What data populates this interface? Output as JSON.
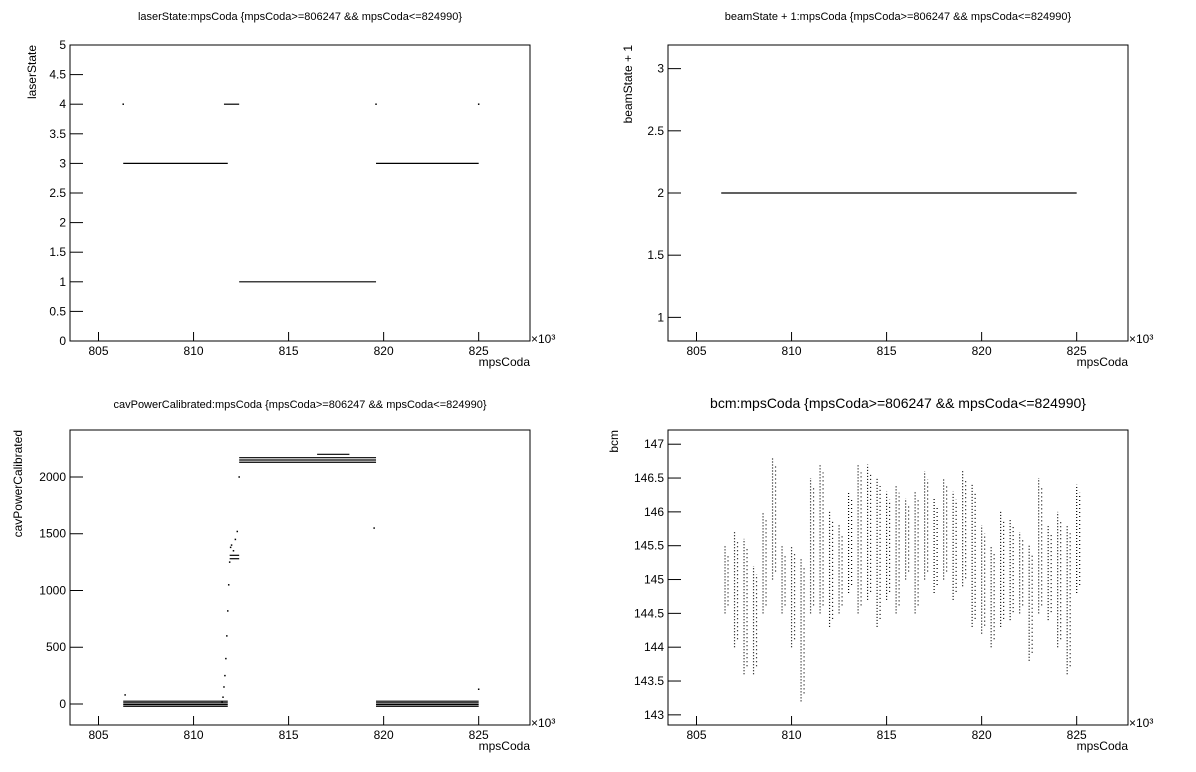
{
  "chart_data": [
    {
      "type": "scatter",
      "title": "laserState:mpsCoda {mpsCoda>=806247 && mpsCoda<=824990}",
      "x_label": "mpsCoda",
      "y_label": "laserState",
      "x_scale_label": "×10³",
      "xlim": [
        803.5,
        827.7
      ],
      "ylim": [
        0,
        5
      ],
      "xticks": [
        805,
        810,
        815,
        820,
        825
      ],
      "yticks": [
        0,
        0.5,
        1,
        1.5,
        2,
        2.5,
        3,
        3.5,
        4,
        4.5,
        5
      ],
      "segments": [
        {
          "x": [
            806.3,
            811.8
          ],
          "y": 3
        },
        {
          "x": [
            811.6,
            812.4
          ],
          "y": 4
        },
        {
          "x": [
            812.4,
            819.6
          ],
          "y": 1
        },
        {
          "x": [
            819.6,
            825
          ],
          "y": 3
        }
      ],
      "points": {
        "x": [
          806.3,
          819.6,
          825
        ],
        "y": [
          4,
          4,
          4
        ]
      }
    },
    {
      "type": "scatter",
      "title": "beamState + 1:mpsCoda {mpsCoda>=806247 && mpsCoda<=824990}",
      "x_label": "mpsCoda",
      "y_label": "beamState + 1",
      "x_scale_label": "×10³",
      "xlim": [
        803.5,
        827.7
      ],
      "ylim": [
        0.81,
        3.19
      ],
      "xticks": [
        805,
        810,
        815,
        820,
        825
      ],
      "yticks": [
        1,
        1.5,
        2,
        2.5,
        3
      ],
      "segments": [
        {
          "x": [
            806.3,
            825
          ],
          "y": 2
        }
      ]
    },
    {
      "type": "scatter",
      "title": "cavPowerCalibrated:mpsCoda {mpsCoda>=806247 && mpsCoda<=824990}",
      "x_label": "mpsCoda",
      "y_label": "cavPowerCalibrated",
      "x_scale_label": "×10³",
      "xlim": [
        803.5,
        827.7
      ],
      "ylim": [
        -185,
        2414
      ],
      "xticks": [
        805,
        810,
        815,
        820,
        825
      ],
      "yticks": [
        0,
        500,
        1000,
        1500,
        2000
      ],
      "segments": [
        {
          "x": [
            806.3,
            811.8
          ],
          "y": -20
        },
        {
          "x": [
            806.3,
            811.8
          ],
          "y": -5
        },
        {
          "x": [
            806.3,
            811.8
          ],
          "y": 10
        },
        {
          "x": [
            806.3,
            811.8
          ],
          "y": 25
        },
        {
          "x": [
            811.9,
            812.4
          ],
          "y": 1280
        },
        {
          "x": [
            811.9,
            812.4
          ],
          "y": 1310
        },
        {
          "x": [
            812.4,
            819.6
          ],
          "y": 2130
        },
        {
          "x": [
            812.4,
            819.6
          ],
          "y": 2150
        },
        {
          "x": [
            812.4,
            819.6
          ],
          "y": 2170
        },
        {
          "x": [
            816.5,
            818.2
          ],
          "y": 2200
        },
        {
          "x": [
            819.6,
            825
          ],
          "y": -20
        },
        {
          "x": [
            819.6,
            825
          ],
          "y": -5
        },
        {
          "x": [
            819.6,
            825
          ],
          "y": 10
        },
        {
          "x": [
            819.6,
            825
          ],
          "y": 25
        }
      ],
      "points": {
        "x": [
          806.4,
          811.5,
          811.55,
          811.6,
          811.65,
          811.7,
          811.75,
          811.8,
          811.85,
          811.9,
          811.95,
          812.0,
          812.1,
          812.2,
          812.3,
          812.4,
          819.5,
          825
        ],
        "y": [
          80,
          20,
          60,
          150,
          250,
          400,
          600,
          820,
          1050,
          1250,
          1380,
          1400,
          1350,
          1450,
          1520,
          2000,
          1550,
          130
        ]
      }
    },
    {
      "type": "scatter",
      "title": "bcm:mpsCoda {mpsCoda>=806247 && mpsCoda<=824990}",
      "x_label": "mpsCoda",
      "y_label": "bcm",
      "x_scale_label": "×10³",
      "xlim": [
        803.5,
        827.7
      ],
      "ylim": [
        142.85,
        147.21
      ],
      "xticks": [
        805,
        810,
        815,
        820,
        825
      ],
      "yticks": [
        143,
        143.5,
        144,
        144.5,
        145,
        145.5,
        146,
        146.5,
        147
      ],
      "columns": {
        "x": [
          806.5,
          807,
          807.5,
          808,
          808.5,
          809,
          809.5,
          810,
          810.5,
          811,
          811.5,
          812,
          812.5,
          813,
          813.5,
          814,
          814.5,
          815,
          815.5,
          816,
          816.5,
          817,
          817.5,
          818,
          818.5,
          819,
          819.5,
          820,
          820.5,
          821,
          821.5,
          822,
          822.5,
          823,
          823.5,
          824,
          824.5,
          825
        ],
        "y_min": [
          144.5,
          144,
          143.6,
          143.6,
          144.5,
          145,
          144.5,
          144,
          143.2,
          144.5,
          144.5,
          144.3,
          144.5,
          144.8,
          144.5,
          144.7,
          144.3,
          144.7,
          144.5,
          145,
          144.5,
          145,
          144.8,
          145,
          144.7,
          144.9,
          144.3,
          144.2,
          144,
          144.3,
          144.4,
          144.5,
          143.8,
          144.5,
          144.4,
          144,
          143.6,
          144.8
        ],
        "y_max": [
          145.5,
          145.7,
          145.6,
          145.2,
          146,
          146.8,
          145.5,
          145.5,
          145.3,
          146.5,
          146.7,
          146,
          145.8,
          146.3,
          146.7,
          146.7,
          146.5,
          146.3,
          146.4,
          146.2,
          146.3,
          146.6,
          146.2,
          146.5,
          146.3,
          146.6,
          146.4,
          145.8,
          145.5,
          146,
          145.9,
          145.7,
          145.5,
          146.5,
          145.8,
          146,
          145.8,
          146.4
        ]
      }
    }
  ]
}
